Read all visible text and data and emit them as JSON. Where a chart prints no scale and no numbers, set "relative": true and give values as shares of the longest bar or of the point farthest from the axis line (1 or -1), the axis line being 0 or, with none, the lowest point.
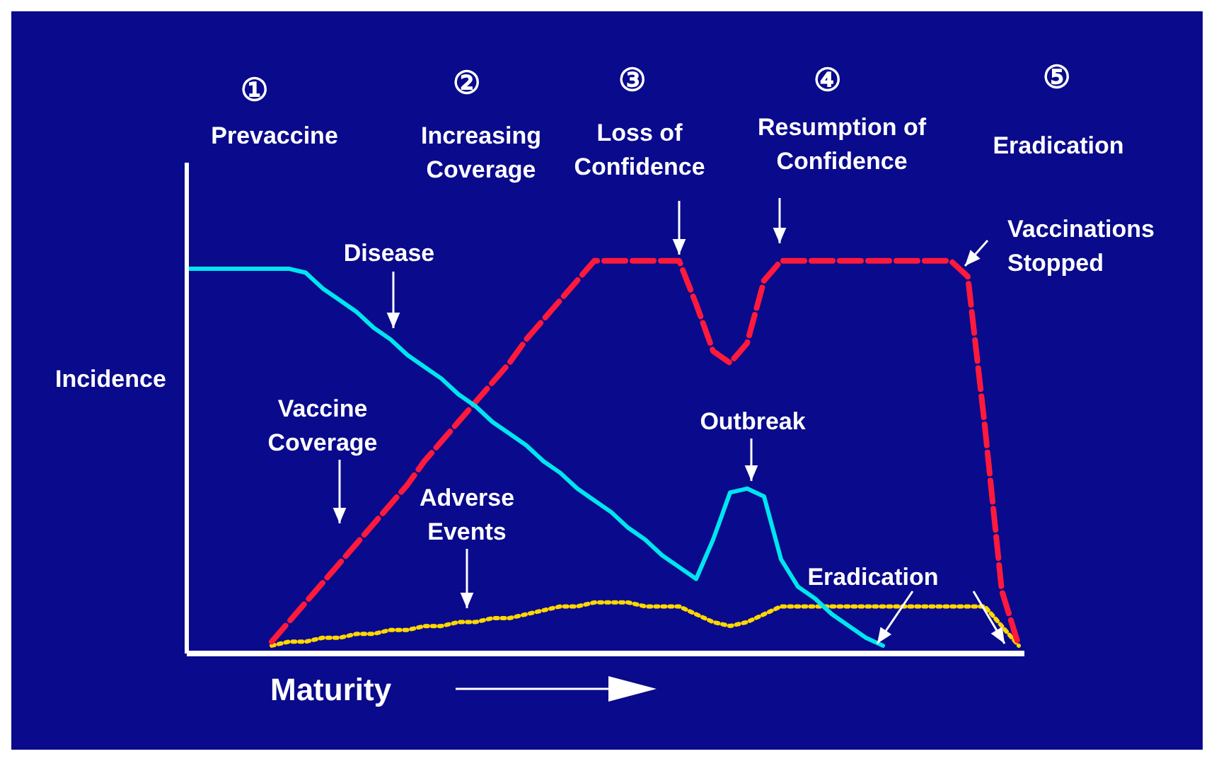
{
  "chart_data": {
    "type": "line",
    "relative": true,
    "xlabel": "Maturity",
    "ylabel": "Incidence",
    "marker": "none",
    "categories": [
      null,
      null,
      null,
      null,
      null,
      null,
      null,
      null,
      null,
      null,
      null,
      null,
      null,
      null,
      null,
      null,
      null,
      null,
      null,
      null,
      null,
      null,
      null,
      null,
      null,
      null,
      null,
      null,
      null,
      null,
      null,
      null,
      null,
      null,
      null,
      null,
      null,
      null,
      null,
      null,
      null,
      null,
      null,
      null,
      null,
      null,
      null,
      null,
      null,
      null
    ],
    "series": [
      {
        "name": "Disease",
        "color": "#00e5ee",
        "line_style": "solid",
        "values": [
          0.98,
          0.98,
          0.98,
          0.98,
          0.98,
          0.98,
          0.98,
          0.97,
          0.93,
          0.9,
          0.87,
          0.83,
          0.8,
          0.76,
          0.73,
          0.7,
          0.66,
          0.63,
          0.59,
          0.56,
          0.53,
          0.49,
          0.46,
          0.42,
          0.39,
          0.36,
          0.32,
          0.29,
          0.25,
          0.22,
          0.19,
          0.29,
          0.41,
          0.42,
          0.4,
          0.24,
          0.17,
          0.14,
          0.1,
          0.07,
          0.04,
          0.02,
          null,
          null,
          null,
          null,
          null,
          null,
          null,
          null
        ]
      },
      {
        "name": "Vaccine Coverage",
        "color": "#ff1a3c",
        "line_style": "dashed",
        "values": [
          null,
          null,
          null,
          null,
          null,
          0.03,
          0.08,
          0.13,
          0.18,
          0.23,
          0.28,
          0.33,
          0.38,
          0.43,
          0.49,
          0.54,
          0.59,
          0.64,
          0.69,
          0.74,
          0.8,
          0.85,
          0.9,
          0.95,
          1.0,
          1.0,
          1.0,
          1.0,
          1.0,
          1.0,
          0.89,
          0.77,
          0.74,
          0.79,
          0.95,
          1.0,
          1.0,
          1.0,
          1.0,
          1.0,
          1.0,
          1.0,
          1.0,
          1.0,
          1.0,
          1.0,
          0.96,
          0.58,
          0.16,
          0.02
        ]
      },
      {
        "name": "Adverse Events",
        "color": "#ffd700",
        "line_style": "dotted",
        "values": [
          null,
          null,
          null,
          null,
          null,
          0.02,
          0.03,
          0.03,
          0.04,
          0.04,
          0.05,
          0.05,
          0.06,
          0.06,
          0.07,
          0.07,
          0.08,
          0.08,
          0.09,
          0.09,
          0.1,
          0.11,
          0.12,
          0.12,
          0.13,
          0.13,
          0.13,
          0.12,
          0.12,
          0.12,
          0.1,
          0.08,
          0.07,
          0.08,
          0.1,
          0.12,
          0.12,
          0.12,
          0.12,
          0.12,
          0.12,
          0.12,
          0.12,
          0.12,
          0.12,
          0.12,
          0.12,
          0.12,
          0.07,
          0.02
        ]
      }
    ],
    "annotations": [
      "①",
      "Prevaccine",
      "②",
      "Increasing Coverage",
      "③",
      "Loss of Confidence",
      "④",
      "Resumption of Confidence",
      "⑤",
      "Eradication",
      "Outbreak",
      "Vaccinations Stopped",
      "Eradication"
    ]
  }
}
